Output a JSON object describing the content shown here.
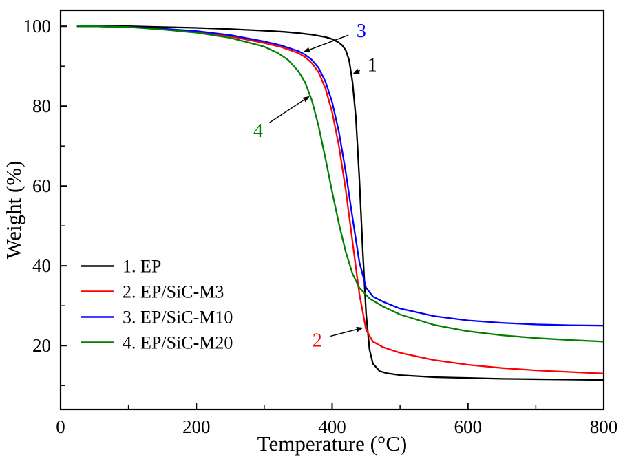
{
  "chart_data": {
    "type": "line",
    "title": "",
    "xlabel": "Temperature (°C)",
    "ylabel": "Weight (%)",
    "xlim": [
      0,
      800
    ],
    "ylim": [
      4,
      104
    ],
    "x_major_ticks": [
      0,
      200,
      400,
      600,
      800
    ],
    "x_minor_ticks": [
      100,
      300,
      500,
      700
    ],
    "y_major_ticks": [
      20,
      40,
      60,
      80,
      100
    ],
    "y_minor_ticks": [
      10,
      30,
      50,
      70,
      90
    ],
    "grid": false,
    "legend_position": "lower-left",
    "axis_color": "#000000",
    "series": [
      {
        "name": "1. EP",
        "color": "#000000",
        "x": [
          25,
          50,
          100,
          150,
          200,
          250,
          300,
          330,
          350,
          370,
          390,
          400,
          410,
          415,
          420,
          425,
          430,
          435,
          440,
          445,
          450,
          455,
          460,
          470,
          480,
          500,
          550,
          600,
          650,
          700,
          750,
          800
        ],
        "y": [
          100,
          100,
          100,
          99.8,
          99.6,
          99.3,
          98.9,
          98.6,
          98.3,
          97.9,
          97.3,
          96.8,
          95.9,
          95.2,
          94.0,
          91.5,
          86.0,
          77.0,
          62.0,
          44.0,
          28.0,
          19.0,
          15.5,
          13.6,
          13.1,
          12.6,
          12.1,
          11.9,
          11.7,
          11.6,
          11.5,
          11.4
        ]
      },
      {
        "name": "2. EP/SiC-M3",
        "color": "#ff0000",
        "x": [
          25,
          50,
          100,
          150,
          200,
          250,
          300,
          325,
          350,
          360,
          370,
          380,
          390,
          400,
          410,
          420,
          430,
          440,
          450,
          460,
          475,
          500,
          550,
          600,
          650,
          700,
          750,
          800
        ],
        "y": [
          100,
          100,
          99.8,
          99.3,
          98.6,
          97.5,
          95.8,
          94.8,
          93.3,
          92.3,
          90.8,
          88.5,
          84.5,
          78.5,
          70.0,
          59.0,
          46.0,
          33.0,
          24.0,
          21.0,
          19.6,
          18.2,
          16.4,
          15.2,
          14.4,
          13.8,
          13.4,
          13.0
        ]
      },
      {
        "name": "3. EP/SiC-M10",
        "color": "#0000ff",
        "x": [
          25,
          50,
          100,
          150,
          200,
          250,
          300,
          325,
          350,
          360,
          370,
          380,
          390,
          400,
          410,
          420,
          430,
          440,
          450,
          460,
          475,
          500,
          550,
          600,
          650,
          700,
          750,
          800
        ],
        "y": [
          100,
          100,
          99.8,
          99.4,
          98.8,
          97.8,
          96.2,
          95.2,
          93.8,
          92.9,
          91.6,
          89.6,
          86.2,
          81.0,
          73.5,
          63.5,
          52.0,
          41.0,
          34.5,
          32.3,
          31.0,
          29.3,
          27.4,
          26.3,
          25.7,
          25.3,
          25.1,
          25.0
        ]
      },
      {
        "name": "4. EP/SiC-M20",
        "color": "#008000",
        "x": [
          25,
          50,
          100,
          150,
          200,
          250,
          300,
          320,
          335,
          350,
          360,
          370,
          380,
          390,
          400,
          410,
          420,
          430,
          440,
          455,
          475,
          500,
          550,
          600,
          650,
          700,
          750,
          800
        ],
        "y": [
          100,
          100,
          99.8,
          99.2,
          98.4,
          97.1,
          94.9,
          93.3,
          91.6,
          88.8,
          86.0,
          81.5,
          75.0,
          67.0,
          58.5,
          50.5,
          43.5,
          38.0,
          34.5,
          31.8,
          29.8,
          27.8,
          25.2,
          23.6,
          22.6,
          21.9,
          21.4,
          21.0
        ]
      }
    ],
    "annotations": [
      {
        "label": "3",
        "color": "#0000ff",
        "text_xy": [
          443,
          99.0
        ],
        "tip_xy": [
          357,
          93.5
        ]
      },
      {
        "label": "1",
        "color": "#000000",
        "text_xy": [
          459,
          90.5
        ],
        "tip_xy": [
          430,
          88.0
        ]
      },
      {
        "label": "4",
        "color": "#008000",
        "text_xy": [
          291,
          74.0
        ],
        "tip_xy": [
          367,
          82.5
        ]
      },
      {
        "label": "2",
        "color": "#ff0000",
        "text_xy": [
          378,
          21.5
        ],
        "tip_xy": [
          446,
          24.5
        ]
      }
    ]
  }
}
